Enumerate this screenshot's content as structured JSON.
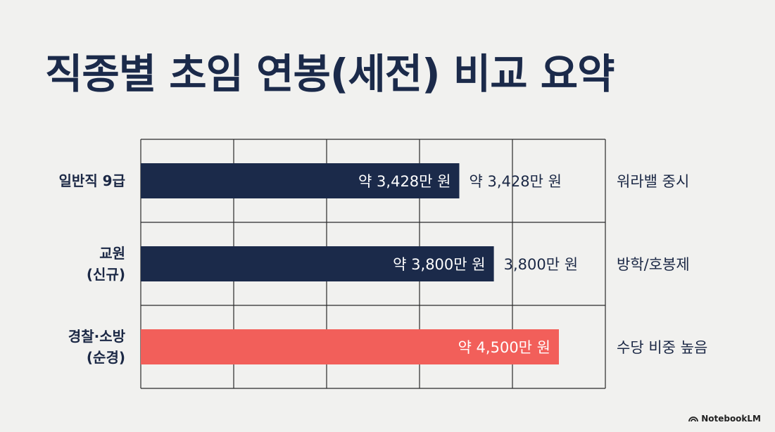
{
  "title": "직종별 초임 연봉(세전) 비교 요약",
  "footer": {
    "brand": "NotebookLM"
  },
  "colors": {
    "navy": "#1b2a4a",
    "coral": "#f25f5a",
    "text": "#1b2845",
    "grid": "#2a2a2a"
  },
  "chart_data": {
    "type": "bar",
    "orientation": "horizontal",
    "categories": [
      "일반직 9급",
      "교원 (신규)",
      "경찰·소방 (순경)"
    ],
    "category_lines": [
      [
        "일반직 9급"
      ],
      [
        "교원",
        "(신규)"
      ],
      [
        "경찰·소방",
        "(순경)"
      ]
    ],
    "values": [
      3428,
      3800,
      4500
    ],
    "unit": "만 원",
    "inner_labels": [
      "약 3,428만 원",
      "약 3,800만 원",
      "약 4,500만 원"
    ],
    "outer_labels": [
      "약 3,428만 원",
      "3,800만 원",
      ""
    ],
    "notes": [
      "워라밸 중시",
      "방학/호봉제",
      "수당 비중 높음"
    ],
    "bar_colors": [
      "#1b2a4a",
      "#1b2a4a",
      "#f25f5a"
    ],
    "xlim": [
      0,
      5000
    ],
    "grid": true,
    "legend": "none"
  }
}
